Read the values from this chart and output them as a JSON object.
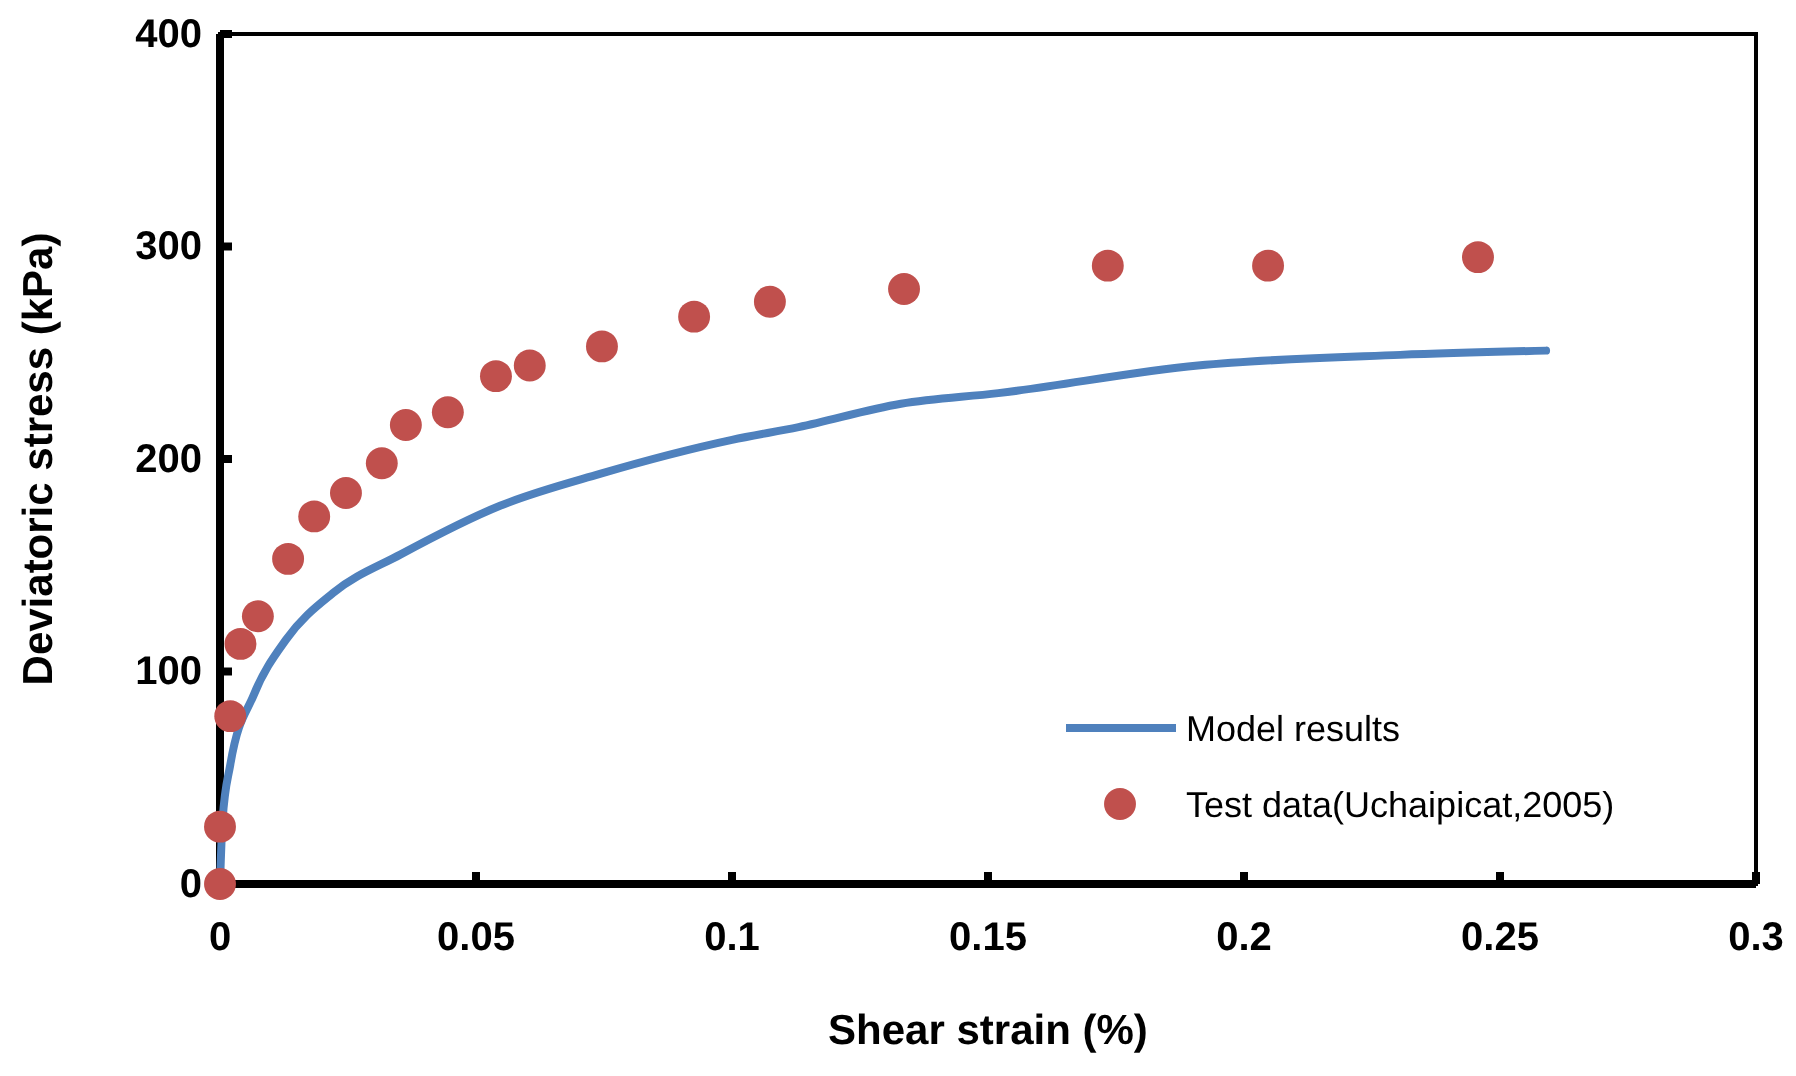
{
  "chart_data": {
    "type": "scatter",
    "xlabel": "Shear strain (%)",
    "ylabel": "Deviatoric stress (kPa)",
    "xlim": [
      0,
      0.3
    ],
    "xticks": [
      0,
      0.05,
      0.1,
      0.15,
      0.2,
      0.25,
      0.3
    ],
    "ylim": [
      0,
      400
    ],
    "yticks": [
      0,
      100,
      200,
      300,
      400
    ],
    "grid": false,
    "legend": "bottom right",
    "series": [
      {
        "name": "Model results",
        "type": "line",
        "color": "#4f81bd",
        "marker": "none",
        "line_style": "solid",
        "x": [
          0,
          0.0005,
          0.002,
          0.0066,
          0.0129,
          0.0221,
          0.0352,
          0.0547,
          0.0742,
          0.1,
          0.113,
          0.133,
          0.152,
          0.191,
          0.2305,
          0.259
        ],
        "values": [
          0,
          30,
          56,
          89,
          115,
          137,
          155,
          178,
          193,
          209,
          215,
          226,
          231,
          244,
          249,
          251
        ]
      },
      {
        "name": "Test data(Uchaipicat,2005)",
        "type": "scatter",
        "color": "#c0504d",
        "marker": "circle",
        "x": [
          0,
          0,
          0.002,
          0.004,
          0.0074,
          0.0133,
          0.0184,
          0.0246,
          0.0316,
          0.0363,
          0.0445,
          0.0539,
          0.0605,
          0.0746,
          0.0926,
          0.1074,
          0.1336,
          0.1734,
          0.2047,
          0.2457
        ],
        "values": [
          0,
          27,
          79,
          113,
          126,
          153,
          173,
          184,
          198,
          216,
          222,
          239,
          244,
          253,
          267,
          274,
          280,
          291,
          291,
          295
        ]
      }
    ]
  }
}
